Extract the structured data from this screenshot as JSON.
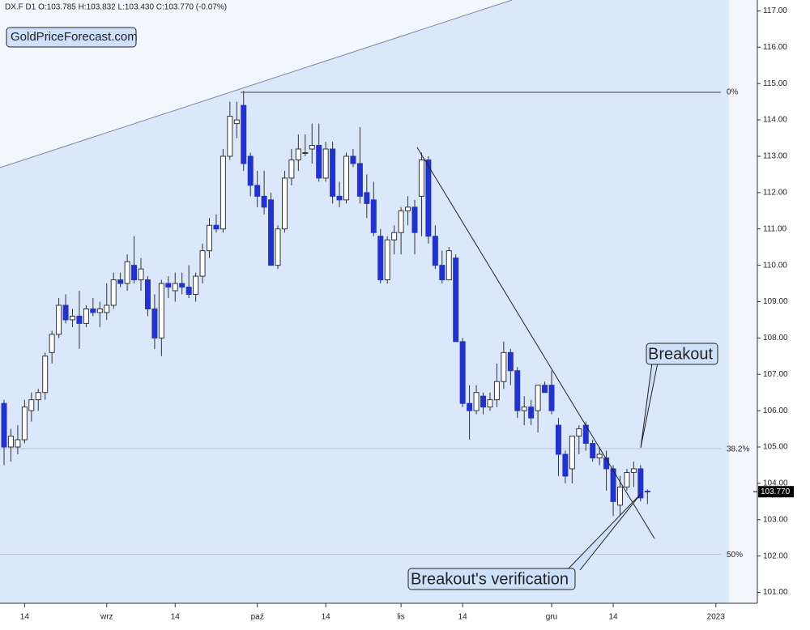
{
  "chart_data": {
    "type": "candlestick",
    "title": "DX.F  D1  O:103.785  H:103.832  L:103.430  C:103.770  (-0.07%)",
    "watermark": "GoldPriceForecast.com",
    "categories": [
      null,
      null,
      null,
      "14",
      null,
      null,
      null,
      null,
      null,
      null,
      null,
      null,
      null,
      null,
      null,
      "wrz",
      null,
      null,
      null,
      null,
      null,
      null,
      null,
      null,
      null,
      "14",
      null,
      null,
      null,
      null,
      null,
      null,
      null,
      null,
      null,
      null,
      null,
      "paź",
      null,
      null,
      null,
      null,
      null,
      null,
      null,
      null,
      null,
      "14",
      null,
      null,
      null,
      null,
      null,
      null,
      null,
      null,
      null,
      null,
      "lis",
      null,
      null,
      null,
      null,
      null,
      null,
      null,
      null,
      "14",
      null,
      null,
      null,
      null,
      null,
      null,
      null,
      null,
      null,
      null,
      null,
      null,
      "gru",
      null,
      null,
      null,
      null,
      null,
      null,
      null,
      null,
      "14",
      null,
      null,
      null,
      null,
      null,
      null,
      null,
      null,
      null,
      null,
      null,
      null,
      null,
      null,
      "2023"
    ],
    "open": [
      106.2,
      105.0,
      105.0,
      105.2,
      106.0,
      106.3,
      106.5,
      107.6,
      108.1,
      108.9,
      108.5,
      108.6,
      108.4,
      108.8,
      108.7,
      108.7,
      108.9,
      109.6,
      109.5,
      110.0,
      109.6,
      109.6,
      108.8,
      108.0,
      109.5,
      109.3,
      109.5,
      109.4,
      109.2,
      109.7,
      110.4,
      111.1,
      111.0,
      113.0,
      113.9,
      114.4,
      113.0,
      112.2,
      111.9,
      111.8,
      110.0,
      111.0,
      112.4,
      112.9,
      113.1,
      113.2,
      113.3,
      112.4,
      113.2,
      111.9,
      111.8,
      113.0,
      112.8,
      112.0,
      111.8,
      110.8,
      109.6,
      110.7,
      110.9,
      111.5,
      111.6,
      111.9,
      112.9,
      110.8,
      110.0,
      109.6,
      110.2,
      107.9,
      106.2,
      106.0,
      106.4,
      106.1,
      106.3,
      106.8,
      107.6,
      107.1,
      106.0,
      106.1,
      106.0,
      106.7,
      106.7,
      105.6,
      104.8,
      104.4,
      105.3,
      105.6,
      105.1,
      104.7,
      104.7,
      104.4,
      103.4,
      103.9,
      104.3,
      104.4,
      103.785,
      null,
      null,
      null,
      null,
      null,
      null,
      null,
      null,
      null,
      null
    ],
    "high": [
      106.3,
      105.5,
      105.6,
      106.3,
      106.5,
      106.6,
      107.6,
      108.2,
      109.1,
      109.2,
      108.8,
      109.3,
      108.9,
      109.1,
      109.0,
      109.5,
      109.8,
      109.8,
      110.3,
      110.8,
      110.2,
      109.7,
      109.2,
      109.6,
      109.7,
      109.8,
      109.8,
      110.0,
      109.8,
      110.6,
      111.3,
      111.4,
      113.2,
      114.5,
      114.5,
      114.8,
      113.1,
      112.6,
      112.6,
      112.0,
      111.1,
      112.6,
      113.2,
      113.6,
      113.6,
      113.9,
      113.9,
      113.4,
      113.4,
      112.3,
      113.1,
      113.2,
      113.8,
      112.5,
      112.3,
      111.0,
      110.8,
      111.1,
      111.6,
      111.9,
      111.8,
      113.1,
      113.0,
      111.1,
      110.4,
      110.5,
      110.3,
      108.0,
      106.7,
      106.7,
      106.5,
      106.5,
      107.3,
      107.9,
      107.7,
      107.2,
      106.4,
      106.3,
      106.7,
      106.8,
      107.1,
      105.8,
      104.9,
      105.3,
      105.6,
      105.7,
      105.2,
      105.0,
      104.9,
      104.5,
      104.2,
      104.4,
      104.6,
      104.5,
      103.832,
      null,
      null,
      null,
      null,
      null,
      null,
      null,
      null,
      null,
      null
    ],
    "low": [
      104.5,
      104.6,
      104.8,
      105.1,
      105.7,
      106.0,
      106.3,
      107.3,
      108.0,
      108.4,
      108.3,
      107.7,
      108.3,
      108.6,
      108.3,
      108.5,
      108.8,
      109.4,
      109.3,
      109.5,
      109.3,
      108.6,
      107.7,
      107.5,
      109.1,
      109.0,
      109.2,
      109.1,
      109.0,
      109.5,
      110.2,
      110.9,
      110.9,
      112.9,
      113.5,
      112.6,
      111.9,
      111.6,
      111.4,
      110.0,
      109.9,
      110.9,
      112.2,
      112.6,
      113.0,
      112.8,
      112.3,
      112.3,
      111.7,
      111.6,
      111.7,
      112.7,
      111.7,
      111.3,
      110.8,
      109.5,
      109.5,
      110.3,
      110.3,
      111.1,
      110.3,
      110.8,
      110.6,
      109.9,
      109.5,
      109.6,
      107.9,
      106.1,
      105.2,
      105.9,
      105.9,
      106.0,
      106.1,
      106.6,
      106.7,
      105.8,
      105.6,
      105.6,
      105.4,
      106.5,
      105.9,
      104.2,
      104.0,
      104.0,
      104.8,
      104.9,
      104.6,
      104.5,
      103.8,
      103.1,
      103.0,
      103.8,
      103.9,
      103.5,
      103.43,
      null,
      null,
      null,
      null,
      null,
      null,
      null,
      null,
      null,
      null
    ],
    "close": [
      105.0,
      105.3,
      105.2,
      106.1,
      106.3,
      106.5,
      107.5,
      108.1,
      108.9,
      108.5,
      108.6,
      108.4,
      108.8,
      108.7,
      108.8,
      108.9,
      109.6,
      109.5,
      110.1,
      109.6,
      109.9,
      108.8,
      108.0,
      109.5,
      109.4,
      109.5,
      109.4,
      109.2,
      109.7,
      110.4,
      111.1,
      111.0,
      113.0,
      114.1,
      114.0,
      112.8,
      112.2,
      111.9,
      111.6,
      110.0,
      111.0,
      112.4,
      112.9,
      113.2,
      113.1,
      113.3,
      112.4,
      113.2,
      111.9,
      111.8,
      113.0,
      112.8,
      111.9,
      111.7,
      110.9,
      109.6,
      110.7,
      110.9,
      111.5,
      111.6,
      110.9,
      112.9,
      110.8,
      110.0,
      109.6,
      110.4,
      107.9,
      106.2,
      106.0,
      106.5,
      106.1,
      106.3,
      106.8,
      107.6,
      107.1,
      106.0,
      106.1,
      105.8,
      106.7,
      106.5,
      106.0,
      104.8,
      104.2,
      105.3,
      105.5,
      105.1,
      104.7,
      104.8,
      104.4,
      103.5,
      103.9,
      104.3,
      104.4,
      103.6,
      103.77,
      null,
      null,
      null,
      null,
      null,
      null,
      null,
      null,
      null,
      null
    ],
    "up_color": "#ffffff",
    "down_color": "#2233cc",
    "ylim": [
      100.7,
      117.3
    ],
    "yticks": [
      {
        "value": 101,
        "label": "101.00"
      },
      {
        "value": 102,
        "label": "102.00"
      },
      {
        "value": 103,
        "label": "103.00"
      },
      {
        "value": 104,
        "label": "104.00"
      },
      {
        "value": 105,
        "label": "105.00"
      },
      {
        "value": 106,
        "label": "106.00"
      },
      {
        "value": 107,
        "label": "107.00"
      },
      {
        "value": 108,
        "label": "108.00"
      },
      {
        "value": 109,
        "label": "109.00"
      },
      {
        "value": 110,
        "label": "110.00"
      },
      {
        "value": 111,
        "label": "111.00"
      },
      {
        "value": 112,
        "label": "112.00"
      },
      {
        "value": 113,
        "label": "113.00"
      },
      {
        "value": 114,
        "label": "114.00"
      },
      {
        "value": 115,
        "label": "115.00"
      },
      {
        "value": 116,
        "label": "116.00"
      },
      {
        "value": 117,
        "label": "117.00"
      }
    ],
    "fib_levels": [
      {
        "value": 114.76,
        "label": "0%"
      },
      {
        "value": 104.96,
        "label": "38.2%"
      },
      {
        "value": 102.05,
        "label": "50%"
      }
    ],
    "last_price": {
      "value": 103.77,
      "label": "103.770"
    },
    "annotations": [
      "Breakout",
      "Breakout's verification"
    ]
  }
}
